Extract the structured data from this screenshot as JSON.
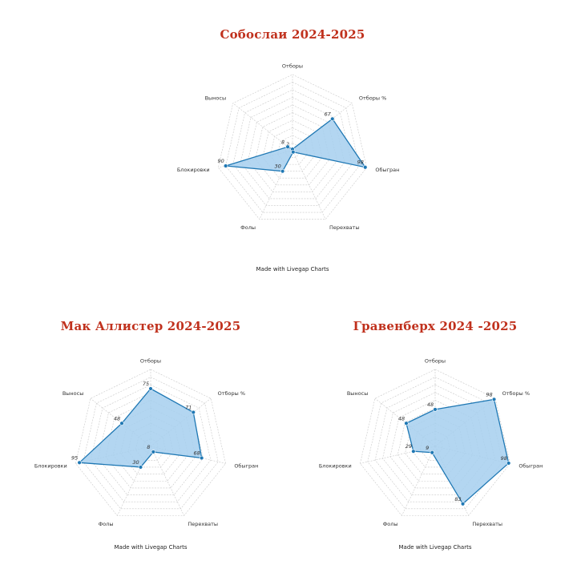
{
  "chart_data": [
    {
      "type": "radar",
      "title": "Собослаи 2024-2025",
      "credit": "Made with Livegap Charts",
      "axes": [
        "Отборы",
        "Отборы %",
        "Обыгран",
        "Перехваты",
        "Фолы",
        "Блокировки",
        "Выносы"
      ],
      "values": [
        2,
        67,
        98,
        2,
        30,
        90,
        8
      ],
      "value_labels": [
        "2",
        "67",
        "98",
        "2",
        "30",
        "90",
        "8"
      ],
      "rlim": [
        0,
        100
      ],
      "grid_levels": 10,
      "colors": {
        "line": "#1f78b4",
        "fill": "#a6cfee",
        "point": "#1f78b4"
      }
    },
    {
      "type": "radar",
      "title": "Мак Аллистер 2024-2025",
      "credit": "Made with Livegap Charts",
      "axes": [
        "Отборы",
        "Отборы %",
        "Обыгран",
        "Перехваты",
        "Фолы",
        "Блокировки",
        "Выносы"
      ],
      "values": [
        75,
        71,
        68,
        8,
        30,
        95,
        48
      ],
      "value_labels": [
        "75",
        "71",
        "68",
        "8",
        "30",
        "95",
        "48"
      ],
      "rlim": [
        0,
        100
      ],
      "grid_levels": 10,
      "colors": {
        "line": "#1f78b4",
        "fill": "#a6cfee",
        "point": "#1f78b4"
      }
    },
    {
      "type": "radar",
      "title": "Гравенберх 2024 -2025",
      "credit": "Made with Livegap Charts",
      "axes": [
        "Отборы",
        "Отборы %",
        "Обыгран",
        "Перехваты",
        "Фолы",
        "Блокировки",
        "Выносы"
      ],
      "values": [
        48,
        98,
        98,
        83,
        9,
        29,
        48
      ],
      "value_labels": [
        "48",
        "98",
        "98",
        "83",
        "9",
        "29",
        "48"
      ],
      "rlim": [
        0,
        100
      ],
      "grid_levels": 10,
      "colors": {
        "line": "#1f78b4",
        "fill": "#a6cfee",
        "point": "#1f78b4"
      }
    }
  ]
}
